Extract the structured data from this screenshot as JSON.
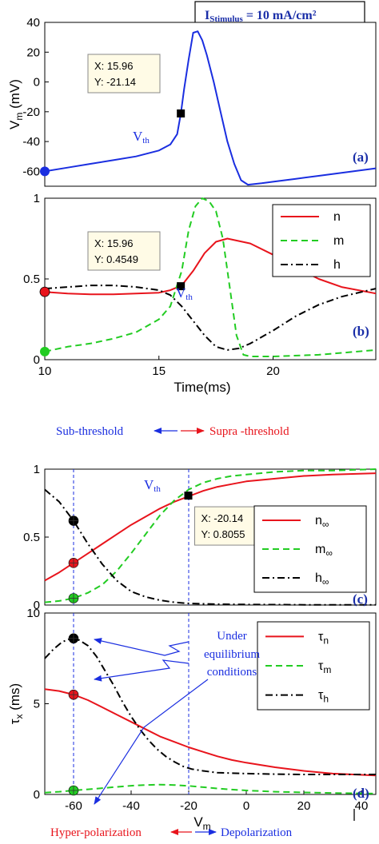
{
  "stimulus_box": {
    "text": "I",
    "sub": "Stimulus",
    "rest": " = 10 mA/cm²"
  },
  "threshold_arrows": {
    "left": "Sub-threshold",
    "right": "Supra -threshold"
  },
  "polarization_arrows": {
    "left": "Hyper-polarization",
    "right": "Depolarization"
  },
  "annotation_d": [
    "Under",
    "equilibrium",
    "conditions"
  ],
  "colors": {
    "n": "#e8141c",
    "m": "#22cc22",
    "h": "#000000",
    "vm": "#1a2ee0",
    "tag": "#1a2ea8",
    "arrow_red": "#e8141c",
    "arrow_blue": "#1a2ee0"
  },
  "chart_data": [
    {
      "id": "a",
      "type": "line",
      "tag": "(a)",
      "ylabel": "V",
      "ylabel_sub": "m",
      "ylabel_unit": " (mV)",
      "xlim": [
        10,
        24.5
      ],
      "ylim": [
        -70,
        40
      ],
      "yticks": [
        -60,
        -40,
        -20,
        0,
        20,
        40
      ],
      "ytick_labels": [
        "-60",
        "-40",
        "-20",
        "0",
        "20",
        "40"
      ],
      "vth_label": "V",
      "vth_sub": "th",
      "datatip": {
        "x": 15.96,
        "y": -21.14,
        "label_x": "X: 15.96",
        "label_y": "Y: -21.14"
      },
      "series": [
        {
          "key": "vm",
          "style": "solid",
          "x": [
            10,
            11,
            12,
            13,
            14,
            15,
            15.5,
            15.8,
            15.96,
            16.1,
            16.3,
            16.5,
            16.7,
            16.9,
            17.1,
            17.4,
            17.7,
            18.0,
            18.3,
            18.6,
            18.9,
            19.5,
            20,
            21,
            22,
            23,
            24.5
          ],
          "y": [
            -60,
            -57.5,
            -55,
            -52.5,
            -50,
            -46,
            -42,
            -35,
            -21.14,
            -5,
            15,
            33,
            34,
            28,
            18,
            0,
            -20,
            -40,
            -55,
            -66,
            -69,
            -68,
            -67,
            -65,
            -63,
            -61,
            -58
          ]
        }
      ]
    },
    {
      "id": "b",
      "type": "line",
      "tag": "(b)",
      "xlabel": "Time(ms)",
      "xlim": [
        10,
        24.5
      ],
      "ylim": [
        0,
        1
      ],
      "xticks": [
        10,
        15,
        20
      ],
      "xtick_labels": [
        "10",
        "15",
        "20"
      ],
      "yticks": [
        0,
        0.5,
        1
      ],
      "ytick_labels": [
        "0",
        "0.5",
        "1"
      ],
      "vth_label": "V",
      "vth_sub": "th",
      "datatip": {
        "x": 15.96,
        "y": 0.4549,
        "label_x": "X: 15.96",
        "label_y": "Y: 0.4549"
      },
      "legend": [
        {
          "key": "n",
          "label": "n"
        },
        {
          "key": "m",
          "label": "m"
        },
        {
          "key": "h",
          "label": "h"
        }
      ],
      "series": [
        {
          "key": "n",
          "style": "solid",
          "x": [
            10,
            11,
            12,
            13,
            14,
            15,
            15.5,
            16,
            16.5,
            17,
            17.5,
            18,
            19,
            20,
            21,
            22,
            23,
            24.5
          ],
          "y": [
            0.42,
            0.41,
            0.405,
            0.405,
            0.41,
            0.415,
            0.43,
            0.46,
            0.55,
            0.66,
            0.73,
            0.75,
            0.72,
            0.65,
            0.57,
            0.5,
            0.45,
            0.41
          ]
        },
        {
          "key": "m",
          "style": "dashed",
          "x": [
            10,
            11,
            12,
            13,
            14,
            15,
            15.5,
            16,
            16.3,
            16.6,
            16.9,
            17.2,
            17.5,
            17.8,
            18.1,
            18.4,
            18.7,
            19,
            20,
            22,
            24.5
          ],
          "y": [
            0.05,
            0.08,
            0.1,
            0.13,
            0.17,
            0.25,
            0.33,
            0.55,
            0.8,
            0.95,
            1.0,
            0.98,
            0.92,
            0.75,
            0.45,
            0.15,
            0.03,
            0.02,
            0.02,
            0.03,
            0.06
          ]
        },
        {
          "key": "h",
          "style": "dashdot",
          "x": [
            10,
            11,
            12,
            13,
            14,
            15,
            15.5,
            16,
            16.5,
            17,
            17.5,
            18,
            18.5,
            19,
            20,
            21,
            22,
            23,
            24.5
          ],
          "y": [
            0.44,
            0.45,
            0.46,
            0.46,
            0.45,
            0.43,
            0.4,
            0.33,
            0.24,
            0.15,
            0.08,
            0.06,
            0.07,
            0.1,
            0.18,
            0.27,
            0.34,
            0.39,
            0.44
          ]
        }
      ]
    },
    {
      "id": "c",
      "type": "line",
      "tag": "(c)",
      "xlim": [
        -70,
        45
      ],
      "ylim": [
        0,
        1
      ],
      "yticks": [
        0,
        0.5,
        1
      ],
      "ytick_labels": [
        "0",
        "0.5",
        "1"
      ],
      "vth_label": "V",
      "vth_sub": "th",
      "datatip": {
        "x": -20.14,
        "y": 0.8055,
        "label_x": "X: -20.14",
        "label_y": "Y: 0.8055"
      },
      "legend": [
        {
          "key": "n",
          "label": "n",
          "sub": "∞"
        },
        {
          "key": "m",
          "label": "m",
          "sub": "∞"
        },
        {
          "key": "h",
          "label": "h",
          "sub": "∞"
        }
      ],
      "series": [
        {
          "key": "n",
          "style": "solid",
          "x": [
            -70,
            -65,
            -60,
            -55,
            -50,
            -45,
            -40,
            -35,
            -30,
            -25,
            -20,
            -15,
            -10,
            -5,
            0,
            10,
            20,
            30,
            45
          ],
          "y": [
            0.18,
            0.24,
            0.31,
            0.38,
            0.45,
            0.52,
            0.59,
            0.65,
            0.71,
            0.76,
            0.8,
            0.84,
            0.87,
            0.89,
            0.91,
            0.93,
            0.95,
            0.96,
            0.97
          ]
        },
        {
          "key": "m",
          "style": "dashed",
          "x": [
            -70,
            -65,
            -60,
            -55,
            -50,
            -45,
            -40,
            -35,
            -30,
            -25,
            -20,
            -15,
            -10,
            -5,
            0,
            10,
            20,
            30,
            45
          ],
          "y": [
            0.02,
            0.03,
            0.05,
            0.09,
            0.15,
            0.25,
            0.38,
            0.52,
            0.66,
            0.77,
            0.85,
            0.9,
            0.93,
            0.95,
            0.96,
            0.98,
            0.99,
            0.99,
            1.0
          ]
        },
        {
          "key": "h",
          "style": "dashdot",
          "x": [
            -70,
            -65,
            -60,
            -55,
            -50,
            -45,
            -40,
            -35,
            -30,
            -25,
            -20,
            -10,
            0,
            20,
            45
          ],
          "y": [
            0.85,
            0.76,
            0.62,
            0.45,
            0.3,
            0.18,
            0.1,
            0.06,
            0.035,
            0.02,
            0.012,
            0.006,
            0.004,
            0.002,
            0.001
          ]
        }
      ],
      "markers": [
        {
          "key": "n",
          "x": -60,
          "y": 0.31
        },
        {
          "key": "m",
          "x": -60,
          "y": 0.05
        },
        {
          "key": "h",
          "x": -60,
          "y": 0.62
        }
      ]
    },
    {
      "id": "d",
      "type": "line",
      "tag": "(d)",
      "xlabel": "V",
      "xlabel_sub": "m",
      "ylabel": "τ",
      "ylabel_sub": "x",
      "ylabel_unit": " (ms)",
      "xlim": [
        -70,
        45
      ],
      "ylim": [
        0,
        10
      ],
      "xticks": [
        -60,
        -40,
        -20,
        0,
        20,
        40
      ],
      "xtick_labels": [
        "-60",
        "-40",
        "-20",
        "0",
        "20",
        "40"
      ],
      "yticks": [
        0,
        5,
        10
      ],
      "ytick_labels": [
        "0",
        "5",
        "10"
      ],
      "legend": [
        {
          "key": "n",
          "label": "τ",
          "sub": "n"
        },
        {
          "key": "m",
          "label": "τ",
          "sub": "m"
        },
        {
          "key": "h",
          "label": "τ",
          "sub": "h"
        }
      ],
      "series": [
        {
          "key": "n",
          "style": "solid",
          "x": [
            -70,
            -65,
            -60,
            -55,
            -50,
            -45,
            -40,
            -35,
            -30,
            -25,
            -20,
            -15,
            -10,
            -5,
            0,
            10,
            20,
            30,
            45
          ],
          "y": [
            5.8,
            5.7,
            5.5,
            5.2,
            4.8,
            4.4,
            4.0,
            3.6,
            3.2,
            2.9,
            2.6,
            2.35,
            2.1,
            1.9,
            1.75,
            1.5,
            1.3,
            1.15,
            1.05
          ]
        },
        {
          "key": "m",
          "style": "dashed",
          "x": [
            -70,
            -65,
            -60,
            -55,
            -50,
            -45,
            -40,
            -35,
            -30,
            -25,
            -20,
            -15,
            -10,
            -5,
            0,
            10,
            20,
            30,
            45
          ],
          "y": [
            0.1,
            0.15,
            0.22,
            0.28,
            0.35,
            0.42,
            0.48,
            0.52,
            0.54,
            0.52,
            0.47,
            0.4,
            0.33,
            0.27,
            0.22,
            0.15,
            0.11,
            0.08,
            0.05
          ]
        },
        {
          "key": "h",
          "style": "dashdot",
          "x": [
            -70,
            -67,
            -64,
            -61,
            -60,
            -58,
            -55,
            -52,
            -49,
            -46,
            -43,
            -40,
            -37,
            -34,
            -31,
            -28,
            -25,
            -22,
            -19,
            -15,
            -10,
            0,
            10,
            20,
            45
          ],
          "y": [
            7.5,
            8.0,
            8.4,
            8.6,
            8.6,
            8.5,
            8.2,
            7.6,
            6.8,
            6.0,
            5.1,
            4.3,
            3.6,
            3.0,
            2.5,
            2.1,
            1.8,
            1.55,
            1.4,
            1.3,
            1.2,
            1.15,
            1.12,
            1.1,
            1.1
          ]
        }
      ],
      "markers": [
        {
          "key": "n",
          "x": -60,
          "y": 5.5
        },
        {
          "key": "m",
          "x": -60,
          "y": 0.22
        },
        {
          "key": "h",
          "x": -60,
          "y": 8.6
        }
      ]
    }
  ]
}
